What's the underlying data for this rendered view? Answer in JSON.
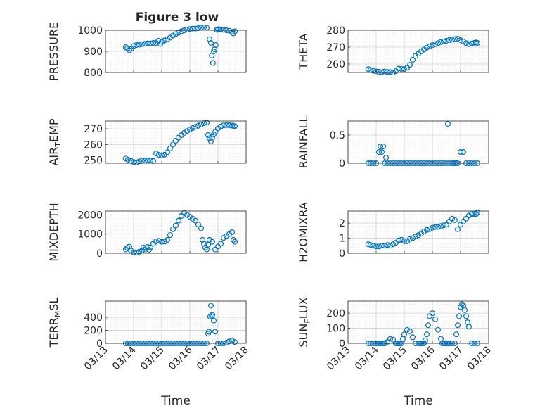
{
  "figure": {
    "title": "Figure 3 low",
    "marker_color": "#0072bd",
    "axis_color": "#262626",
    "grid_color": "#dcdcdc"
  },
  "chart_data": [
    {
      "id": "pressure",
      "type": "scatter",
      "marker": "circle",
      "ylabel": "PRESSURE",
      "ylabel_sub": "",
      "ylim": [
        800,
        1000
      ],
      "yticks": [
        800,
        900,
        1000
      ],
      "ytick_labels": [
        "800",
        "900",
        "1000"
      ],
      "xlim": [
        0,
        5
      ],
      "xticks": [
        0,
        1,
        2,
        3,
        4,
        5
      ],
      "xtick_labels": [
        "03/13",
        "03/14",
        "03/15",
        "03/16",
        "03/17",
        "03/18"
      ],
      "show_xticklabels": false,
      "grid": true,
      "x": [
        0.72,
        0.78,
        0.85,
        0.92,
        1.0,
        1.1,
        1.2,
        1.3,
        1.4,
        1.5,
        1.6,
        1.7,
        1.8,
        1.88,
        1.95,
        2.0,
        2.1,
        2.2,
        2.3,
        2.4,
        2.5,
        2.6,
        2.7,
        2.8,
        2.9,
        3.0,
        3.1,
        3.2,
        3.3,
        3.4,
        3.5,
        3.6,
        3.7,
        3.75,
        3.78,
        3.82,
        3.85,
        3.88,
        3.92,
        3.96,
        4.0,
        4.05,
        4.1,
        4.2,
        4.3,
        4.4,
        4.5,
        4.55,
        4.6
      ],
      "y": [
        920,
        915,
        905,
        912,
        925,
        930,
        932,
        934,
        936,
        938,
        938,
        940,
        940,
        950,
        935,
        945,
        952,
        958,
        965,
        975,
        982,
        988,
        995,
        1000,
        1003,
        1006,
        1008,
        1008,
        1010,
        1012,
        1013,
        1012,
        958,
        940,
        880,
        845,
        900,
        910,
        930,
        1002,
        1005,
        1004,
        1003,
        1002,
        1000,
        998,
        992,
        985,
        995
      ]
    },
    {
      "id": "theta",
      "type": "scatter",
      "marker": "circle",
      "ylabel": "THETA",
      "ylabel_sub": "",
      "ylim": [
        255,
        280
      ],
      "yticks": [
        260,
        270,
        280
      ],
      "ytick_labels": [
        "260",
        "270",
        "280"
      ],
      "xlim": [
        0,
        5
      ],
      "xticks": [
        0,
        1,
        2,
        3,
        4,
        5
      ],
      "xtick_labels": [
        "03/13",
        "03/14",
        "03/15",
        "03/16",
        "03/17",
        "03/18"
      ],
      "show_xticklabels": false,
      "grid": true,
      "x": [
        0.72,
        0.8,
        0.9,
        1.0,
        1.1,
        1.2,
        1.3,
        1.4,
        1.5,
        1.6,
        1.7,
        1.8,
        1.9,
        2.0,
        2.1,
        2.2,
        2.3,
        2.4,
        2.5,
        2.6,
        2.7,
        2.8,
        2.9,
        3.0,
        3.1,
        3.2,
        3.3,
        3.4,
        3.5,
        3.6,
        3.7,
        3.8,
        3.9,
        4.0,
        4.1,
        4.2,
        4.3,
        4.4,
        4.5,
        4.55,
        4.6
      ],
      "y": [
        257,
        256.5,
        256,
        255.6,
        255.4,
        255.2,
        255.6,
        255.3,
        255.2,
        255,
        255.8,
        257.3,
        257.1,
        257,
        257.8,
        259.5,
        262.5,
        264.8,
        266.2,
        267.5,
        268.6,
        269.6,
        270.4,
        271.2,
        271.8,
        272.4,
        273,
        273.4,
        273.8,
        274.2,
        274.4,
        274.8,
        275,
        274.2,
        273.3,
        272.4,
        271.8,
        272.2,
        272.6,
        272.8,
        272.5
      ]
    },
    {
      "id": "air_temp",
      "type": "scatter",
      "marker": "circle",
      "ylabel": "AIR",
      "ylabel_sub": "T",
      "ylabel_suffix": "EMP",
      "ylim": [
        248,
        275
      ],
      "yticks": [
        250,
        260,
        270
      ],
      "ytick_labels": [
        "250",
        "260",
        "270"
      ],
      "xlim": [
        0,
        5
      ],
      "xticks": [
        0,
        1,
        2,
        3,
        4,
        5
      ],
      "xtick_labels": [
        "03/13",
        "03/14",
        "03/15",
        "03/16",
        "03/17",
        "03/18"
      ],
      "show_xticklabels": false,
      "grid": true,
      "x": [
        0.72,
        0.8,
        0.9,
        1.0,
        1.1,
        1.2,
        1.3,
        1.4,
        1.5,
        1.6,
        1.7,
        1.8,
        1.9,
        2.0,
        2.1,
        2.2,
        2.3,
        2.4,
        2.5,
        2.6,
        2.7,
        2.8,
        2.9,
        3.0,
        3.1,
        3.2,
        3.3,
        3.4,
        3.5,
        3.6,
        3.65,
        3.7,
        3.75,
        3.8,
        3.85,
        3.9,
        4.0,
        4.1,
        4.2,
        4.3,
        4.4,
        4.5,
        4.55,
        4.6
      ],
      "y": [
        251,
        250.3,
        249.6,
        248.8,
        248.5,
        249.2,
        249.5,
        249.6,
        249.8,
        249.7,
        249.4,
        254.2,
        253.4,
        253,
        253.5,
        255,
        257.5,
        260,
        262.4,
        264.4,
        266,
        267.4,
        268.6,
        269.6,
        270.5,
        271.3,
        272,
        272.8,
        273.6,
        274,
        266,
        264,
        262,
        264.8,
        266.5,
        268,
        270.3,
        271.5,
        272.2,
        272.4,
        272.3,
        272.1,
        271.9,
        271.7
      ]
    },
    {
      "id": "rainfall",
      "type": "scatter",
      "marker": "circle",
      "ylabel": "RAINFALL",
      "ylabel_sub": "",
      "ylim": [
        0,
        0.75
      ],
      "yticks": [
        0,
        0.5
      ],
      "ytick_labels": [
        "0",
        "0.5"
      ],
      "xlim": [
        0,
        5
      ],
      "xticks": [
        0,
        1,
        2,
        3,
        4,
        5
      ],
      "xtick_labels": [
        "03/13",
        "03/14",
        "03/15",
        "03/16",
        "03/17",
        "03/18"
      ],
      "show_xticklabels": false,
      "grid": true,
      "x": [
        0.72,
        0.8,
        0.9,
        1.0,
        1.1,
        1.15,
        1.2,
        1.25,
        1.3,
        1.35,
        1.4,
        1.5,
        1.6,
        1.7,
        1.8,
        1.9,
        2.0,
        2.1,
        2.2,
        2.3,
        2.4,
        2.5,
        2.6,
        2.7,
        2.8,
        2.9,
        3.0,
        3.1,
        3.2,
        3.3,
        3.4,
        3.5,
        3.55,
        3.6,
        3.7,
        3.75,
        3.8,
        3.85,
        3.9,
        4.0,
        4.1,
        4.2,
        4.3,
        4.4,
        4.5,
        4.6
      ],
      "y": [
        0,
        0,
        0,
        0,
        0.2,
        0.3,
        0.2,
        0.3,
        0,
        0.1,
        0,
        0,
        0,
        0,
        0,
        0,
        0,
        0,
        0,
        0,
        0,
        0,
        0,
        0,
        0,
        0,
        0,
        0,
        0,
        0,
        0,
        0,
        0.7,
        0,
        0,
        0,
        0,
        0,
        0,
        0.2,
        0.2,
        0,
        0,
        0,
        0,
        0
      ]
    },
    {
      "id": "mixdepth",
      "type": "scatter",
      "marker": "circle",
      "ylabel": "MIXDEPTH",
      "ylabel_sub": "",
      "ylim": [
        0,
        2200
      ],
      "yticks": [
        0,
        1000,
        2000
      ],
      "ytick_labels": [
        "0",
        "1000",
        "2000"
      ],
      "xlim": [
        0,
        5
      ],
      "xticks": [
        0,
        1,
        2,
        3,
        4,
        5
      ],
      "xtick_labels": [
        "03/13",
        "03/14",
        "03/15",
        "03/16",
        "03/17",
        "03/18"
      ],
      "show_xticklabels": false,
      "grid": true,
      "x": [
        0.72,
        0.78,
        0.85,
        0.9,
        1.0,
        1.1,
        1.2,
        1.3,
        1.35,
        1.4,
        1.5,
        1.55,
        1.6,
        1.7,
        1.8,
        1.9,
        2.0,
        2.1,
        2.2,
        2.3,
        2.4,
        2.5,
        2.6,
        2.7,
        2.8,
        2.9,
        3.0,
        3.1,
        3.2,
        3.3,
        3.4,
        3.45,
        3.5,
        3.55,
        3.6,
        3.65,
        3.7,
        3.8,
        3.9,
        4.0,
        4.1,
        4.2,
        4.3,
        4.4,
        4.5,
        4.55,
        4.6
      ],
      "y": [
        200,
        280,
        350,
        150,
        50,
        30,
        80,
        150,
        300,
        200,
        330,
        180,
        300,
        500,
        620,
        650,
        600,
        610,
        700,
        950,
        1250,
        1450,
        1700,
        1950,
        2100,
        2000,
        1900,
        1800,
        1700,
        1500,
        1300,
        700,
        500,
        300,
        200,
        450,
        700,
        600,
        200,
        350,
        500,
        800,
        900,
        1000,
        1100,
        700,
        600
      ]
    },
    {
      "id": "h2omixra",
      "type": "scatter",
      "marker": "circle",
      "ylabel": "H2OMIXRA",
      "ylabel_sub": "",
      "ylim": [
        0,
        2.8
      ],
      "yticks": [
        0,
        1,
        2
      ],
      "ytick_labels": [
        "0",
        "1",
        "2"
      ],
      "xlim": [
        0,
        5
      ],
      "xticks": [
        0,
        1,
        2,
        3,
        4,
        5
      ],
      "xtick_labels": [
        "03/13",
        "03/14",
        "03/15",
        "03/16",
        "03/17",
        "03/18"
      ],
      "show_xticklabels": false,
      "grid": true,
      "x": [
        0.72,
        0.8,
        0.9,
        1.0,
        1.1,
        1.2,
        1.3,
        1.4,
        1.5,
        1.6,
        1.7,
        1.8,
        1.9,
        2.0,
        2.1,
        2.2,
        2.3,
        2.4,
        2.5,
        2.6,
        2.7,
        2.8,
        2.9,
        3.0,
        3.1,
        3.2,
        3.3,
        3.4,
        3.5,
        3.6,
        3.7,
        3.8,
        3.9,
        4.0,
        4.1,
        4.2,
        4.3,
        4.4,
        4.5,
        4.55,
        4.6
      ],
      "y": [
        0.6,
        0.55,
        0.5,
        0.45,
        0.45,
        0.5,
        0.5,
        0.55,
        0.5,
        0.6,
        0.7,
        0.85,
        0.9,
        0.8,
        0.8,
        0.95,
        1.0,
        1.1,
        1.2,
        1.3,
        1.45,
        1.55,
        1.6,
        1.7,
        1.75,
        1.75,
        1.8,
        1.85,
        1.9,
        2.1,
        2.3,
        2.2,
        1.6,
        1.9,
        2.1,
        2.3,
        2.5,
        2.6,
        2.6,
        2.6,
        2.7
      ]
    },
    {
      "id": "terr_msl",
      "type": "scatter",
      "marker": "circle",
      "ylabel": "TERR",
      "ylabel_sub": "M",
      "ylabel_suffix": "SL",
      "ylim": [
        0,
        650
      ],
      "yticks": [
        0,
        200,
        400
      ],
      "ytick_labels": [
        "0",
        "200",
        "400"
      ],
      "xlim": [
        0,
        5
      ],
      "xticks": [
        0,
        1,
        2,
        3,
        4,
        5
      ],
      "xtick_labels": [
        "03/13",
        "03/14",
        "03/15",
        "03/16",
        "03/17",
        "03/18"
      ],
      "show_xticklabels": true,
      "grid": true,
      "x": [
        0.72,
        0.8,
        0.9,
        1.0,
        1.1,
        1.2,
        1.3,
        1.4,
        1.5,
        1.6,
        1.7,
        1.8,
        1.9,
        2.0,
        2.1,
        2.2,
        2.3,
        2.4,
        2.5,
        2.6,
        2.7,
        2.8,
        2.9,
        3.0,
        3.1,
        3.2,
        3.3,
        3.4,
        3.5,
        3.6,
        3.65,
        3.68,
        3.72,
        3.75,
        3.78,
        3.8,
        3.85,
        3.9,
        4.0,
        4.1,
        4.2,
        4.3,
        4.4,
        4.5,
        4.6
      ],
      "y": [
        0,
        0,
        0,
        0,
        0,
        0,
        0,
        0,
        0,
        0,
        0,
        0,
        0,
        0,
        0,
        0,
        0,
        0,
        0,
        0,
        0,
        0,
        0,
        0,
        0,
        0,
        0,
        0,
        0,
        0,
        150,
        180,
        410,
        580,
        420,
        440,
        350,
        180,
        0,
        0,
        0,
        10,
        30,
        40,
        20
      ]
    },
    {
      "id": "sun_flux",
      "type": "scatter",
      "marker": "circle",
      "ylabel": "SUN",
      "ylabel_sub": "F",
      "ylabel_suffix": "LUX",
      "ylim": [
        0,
        280
      ],
      "yticks": [
        0,
        100,
        200
      ],
      "ytick_labels": [
        "0",
        "100",
        "200"
      ],
      "xlim": [
        0,
        5
      ],
      "xticks": [
        0,
        1,
        2,
        3,
        4,
        5
      ],
      "xtick_labels": [
        "03/13",
        "03/14",
        "03/15",
        "03/16",
        "03/17",
        "03/18"
      ],
      "show_xticklabels": true,
      "grid": true,
      "x": [
        0.72,
        0.8,
        0.9,
        1.0,
        1.05,
        1.1,
        1.15,
        1.2,
        1.25,
        1.3,
        1.4,
        1.5,
        1.6,
        1.7,
        1.75,
        1.8,
        1.85,
        1.9,
        1.95,
        2.0,
        2.1,
        2.2,
        2.3,
        2.4,
        2.5,
        2.55,
        2.6,
        2.65,
        2.7,
        2.75,
        2.8,
        2.85,
        2.9,
        3.0,
        3.1,
        3.2,
        3.3,
        3.35,
        3.4,
        3.45,
        3.5,
        3.55,
        3.6,
        3.7,
        3.8,
        3.85,
        3.9,
        3.95,
        4.0,
        4.05,
        4.1,
        4.15,
        4.2,
        4.25,
        4.3,
        4.4,
        4.5,
        4.6
      ],
      "y": [
        0,
        0,
        0,
        0,
        0,
        0,
        0,
        0,
        0,
        0,
        10,
        30,
        25,
        0,
        0,
        0,
        0,
        0,
        30,
        60,
        90,
        80,
        40,
        0,
        0,
        0,
        0,
        0,
        0,
        20,
        60,
        120,
        180,
        200,
        160,
        90,
        30,
        0,
        0,
        0,
        0,
        0,
        0,
        0,
        0,
        60,
        120,
        180,
        240,
        260,
        250,
        220,
        180,
        140,
        110,
        0,
        0,
        0
      ]
    }
  ],
  "x_axis_label": "Time"
}
